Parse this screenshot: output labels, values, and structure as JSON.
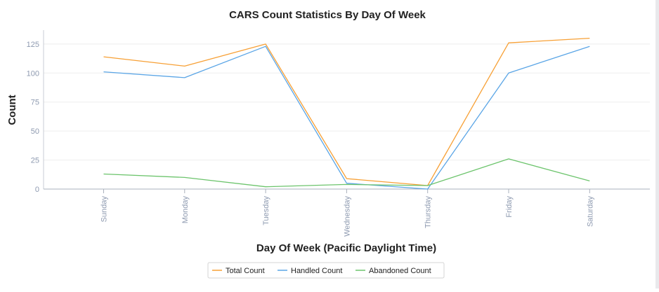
{
  "chart_data": {
    "type": "line",
    "title": "CARS Count Statistics By Day Of Week",
    "xlabel": "Day Of Week (Pacific Daylight Time)",
    "ylabel": "Count",
    "categories": [
      "Sunday",
      "Monday",
      "Tuesday",
      "Wednesday",
      "Thursday",
      "Friday",
      "Saturday"
    ],
    "ylim": [
      0,
      137
    ],
    "yticks": [
      0,
      25,
      50,
      75,
      100,
      125
    ],
    "grid": true,
    "legend_position": "bottom",
    "series": [
      {
        "name": "Total Count",
        "color": "#f7a035",
        "values": [
          114,
          106,
          125,
          9,
          3,
          126,
          130
        ]
      },
      {
        "name": "Handled Count",
        "color": "#5aa5e6",
        "values": [
          101,
          96,
          123,
          5,
          0,
          100,
          123
        ]
      },
      {
        "name": "Abandoned Count",
        "color": "#6cc46c",
        "values": [
          13,
          10,
          2,
          4,
          3,
          26,
          7
        ]
      }
    ]
  }
}
